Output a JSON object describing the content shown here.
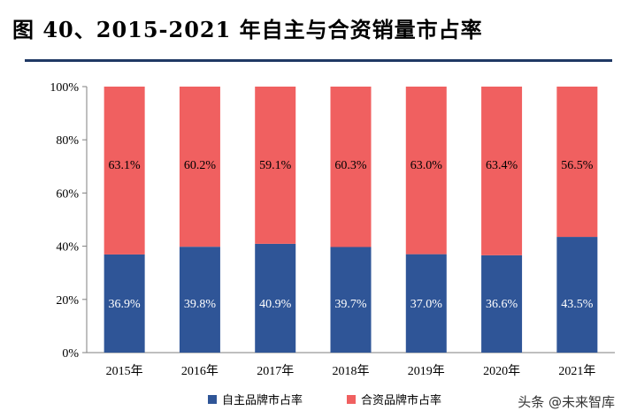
{
  "title": "图 40、2015-2021 年自主与合资销量市占率",
  "watermark": "头条 @未来智库",
  "colors": {
    "domestic": "#2f5597",
    "jv": "#f06060",
    "axis": "#7f7f7f",
    "title_rule": "#1f3864"
  },
  "chart_data": {
    "type": "bar",
    "stacked": true,
    "categories": [
      "2015年",
      "2016年",
      "2017年",
      "2018年",
      "2019年",
      "2020年",
      "2021年"
    ],
    "series": [
      {
        "name": "自主品牌市占率",
        "values": [
          36.9,
          39.8,
          40.9,
          39.7,
          37.0,
          36.6,
          43.5
        ],
        "labels": [
          "36.9%",
          "39.8%",
          "40.9%",
          "39.7%",
          "37.0%",
          "36.6%",
          "43.5%"
        ]
      },
      {
        "name": "合资品牌市占率",
        "values": [
          63.1,
          60.2,
          59.1,
          60.3,
          63.0,
          63.4,
          56.5
        ],
        "labels": [
          "63.1%",
          "60.2%",
          "59.1%",
          "60.3%",
          "63.0%",
          "63.4%",
          "56.5%"
        ]
      }
    ],
    "ylim": [
      0,
      100
    ],
    "yticks": [
      0,
      20,
      40,
      60,
      80,
      100
    ],
    "ytick_labels": [
      "0%",
      "20%",
      "40%",
      "60%",
      "80%",
      "100%"
    ],
    "grid": false,
    "legend_position": "bottom"
  }
}
